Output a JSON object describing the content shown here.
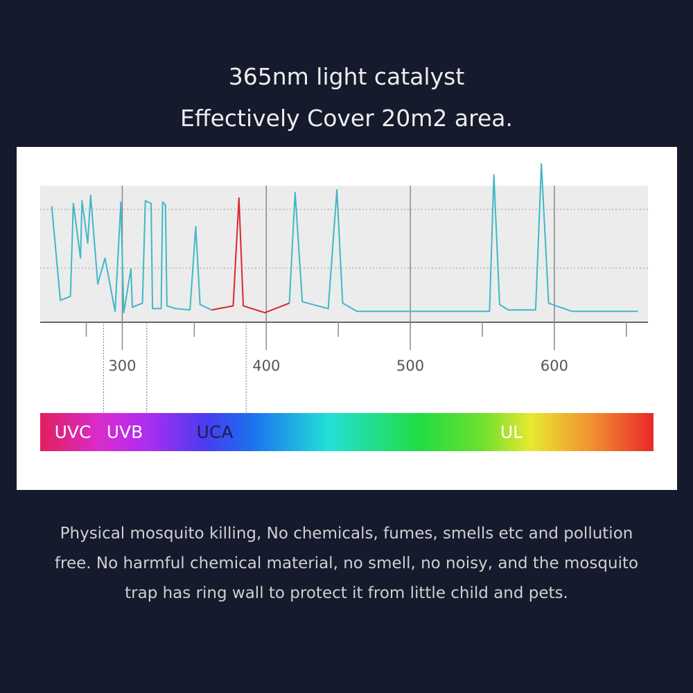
{
  "header": {
    "lines": [
      "365nm light catalyst",
      "Effectively Cover 20m2 area."
    ]
  },
  "chart_data": {
    "type": "line",
    "x": [
      251,
      257,
      264,
      266,
      271,
      272,
      276,
      278,
      283,
      288,
      295,
      299,
      301,
      306,
      307,
      314,
      316,
      320,
      321,
      327,
      328,
      330,
      331,
      337,
      347,
      351,
      354,
      362,
      377,
      381,
      384,
      399,
      416,
      420,
      425,
      443,
      449,
      453,
      463,
      555,
      558,
      562,
      568,
      587,
      591,
      596,
      612,
      658
    ],
    "series": [
      {
        "color": "#3fb8c8",
        "values": [
          85,
          16,
          19,
          87,
          47,
          89,
          58,
          93,
          28,
          47,
          8,
          88,
          7,
          39,
          11,
          14,
          89,
          87,
          10,
          10,
          88,
          86,
          12,
          10,
          9,
          70,
          13,
          9,
          null,
          null,
          null,
          null,
          14,
          95,
          15,
          10,
          97,
          14,
          8,
          8,
          108,
          13,
          9,
          9,
          116,
          14,
          8,
          8
        ]
      },
      {
        "color": "#d9262c",
        "values": [
          null,
          null,
          null,
          null,
          null,
          null,
          null,
          null,
          null,
          null,
          null,
          null,
          null,
          null,
          null,
          null,
          null,
          null,
          null,
          null,
          null,
          null,
          null,
          null,
          null,
          null,
          null,
          9,
          12,
          91,
          12,
          7,
          14,
          null,
          null,
          null,
          null,
          null,
          null,
          null,
          null,
          null,
          null,
          null,
          null,
          null,
          null,
          null
        ]
      }
    ],
    "xlim": [
      243,
      665
    ],
    "ylim": [
      0,
      100
    ],
    "xticks": [
      300,
      400,
      500,
      600
    ],
    "xminorticks": [
      275,
      350,
      450,
      550,
      650
    ],
    "band_edges": [
      287,
      317,
      386
    ],
    "band_labels": [
      "UVC",
      "UVB",
      "UCA",
      "UL"
    ]
  },
  "caption": {
    "lines": [
      "Physical mosquito killing, No chemicals, fumes, smells etc and pollution",
      "free. No harmful chemical material, no smell, no noisy, and the mosquito",
      "trap has ring wall to protect it from little child and pets."
    ]
  }
}
